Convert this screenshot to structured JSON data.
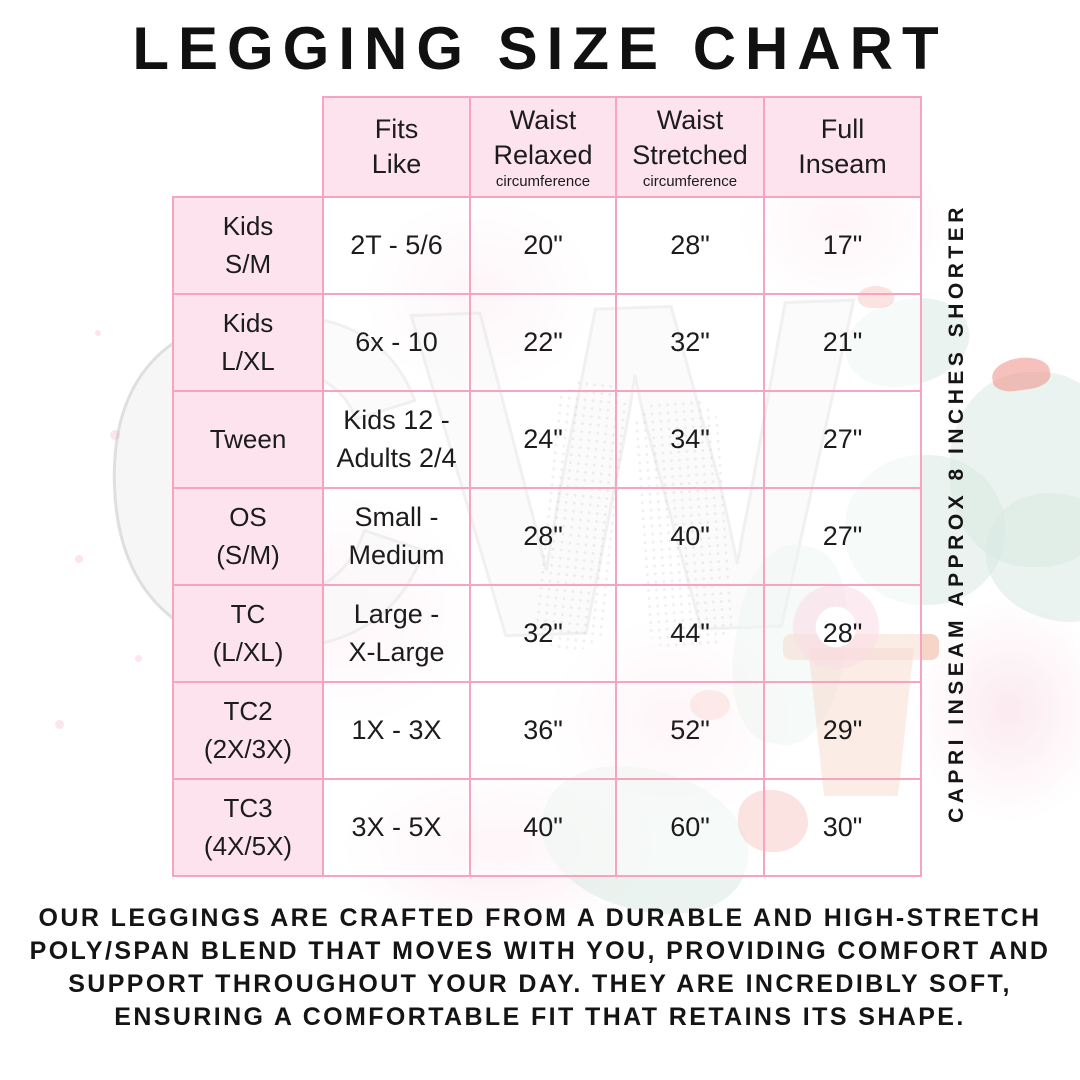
{
  "title": "LEGGING SIZE CHART",
  "watermark": {
    "monogram": "CW"
  },
  "chart_data": {
    "type": "table",
    "title": "LEGGING SIZE CHART",
    "column_headers": [
      {
        "label": "Fits\nLike",
        "sub": ""
      },
      {
        "label": "Waist\nRelaxed",
        "sub": "circumference"
      },
      {
        "label": "Waist\nStretched",
        "sub": "circumference"
      },
      {
        "label": "Full\nInseam",
        "sub": ""
      }
    ],
    "rows": [
      {
        "size": "Kids\nS/M",
        "fits_like": "2T - 5/6",
        "waist_relaxed": "20\"",
        "waist_stretched": "28\"",
        "full_inseam": "17\""
      },
      {
        "size": "Kids\nL/XL",
        "fits_like": "6x - 10",
        "waist_relaxed": "22\"",
        "waist_stretched": "32\"",
        "full_inseam": "21\""
      },
      {
        "size": "Tween",
        "fits_like": "Kids 12 -\nAdults 2/4",
        "waist_relaxed": "24\"",
        "waist_stretched": "34\"",
        "full_inseam": "27\""
      },
      {
        "size": "OS\n(S/M)",
        "fits_like": "Small -\nMedium",
        "waist_relaxed": "28\"",
        "waist_stretched": "40\"",
        "full_inseam": "27\""
      },
      {
        "size": "TC\n(L/XL)",
        "fits_like": "Large -\nX-Large",
        "waist_relaxed": "32\"",
        "waist_stretched": "44\"",
        "full_inseam": "28\""
      },
      {
        "size": "TC2\n(2X/3X)",
        "fits_like": "1X - 3X",
        "waist_relaxed": "36\"",
        "waist_stretched": "52\"",
        "full_inseam": "29\""
      },
      {
        "size": "TC3\n(4X/5X)",
        "fits_like": "3X - 5X",
        "waist_relaxed": "40\"",
        "waist_stretched": "60\"",
        "full_inseam": "30\""
      }
    ]
  },
  "side_note": "CAPRI INSEAM APPROX 8 INCHES SHORTER",
  "description": "OUR LEGGINGS ARE CRAFTED FROM A DURABLE AND HIGH-STRETCH POLY/SPAN BLEND THAT MOVES WITH YOU, PROVIDING COMFORT AND SUPPORT THROUGHOUT YOUR DAY. THEY ARE INCREDIBLY SOFT, ENSURING A COMFORTABLE FIT THAT RETAINS ITS SHAPE.",
  "colors": {
    "border_pink": "#f6a4c1",
    "cell_pink": "#fce3ed",
    "text": "#1c1c1c",
    "watermark_mint": "#d9e9e2",
    "watermark_red": "#ef8e85",
    "watermark_pink": "#f9d9e4"
  }
}
